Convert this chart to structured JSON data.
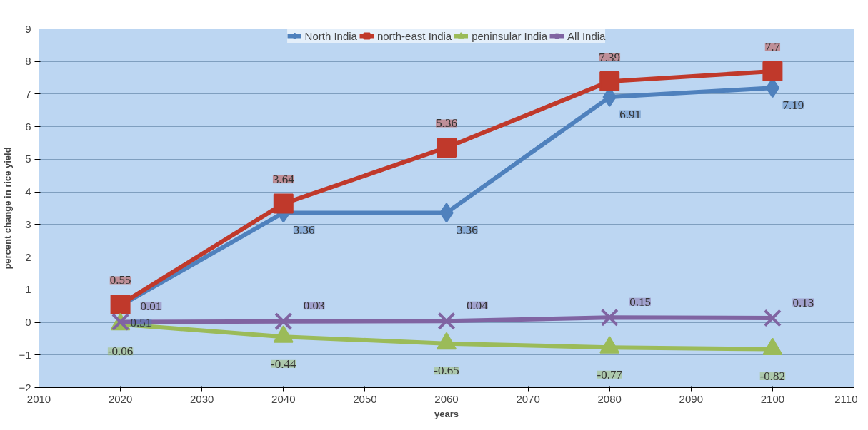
{
  "chart_data": {
    "type": "line",
    "xlabel": "years",
    "ylabel": "percent change in rice yield",
    "x": [
      2020,
      2040,
      2060,
      2080,
      2100
    ],
    "series": [
      {
        "name": "North India",
        "color": "#4f81bd",
        "marker": "diamond",
        "values": [
          0.51,
          3.36,
          3.36,
          6.91,
          7.19
        ]
      },
      {
        "name": "north-east India",
        "color": "#c0392b",
        "marker": "square",
        "values": [
          0.55,
          3.64,
          5.36,
          7.39,
          7.7
        ]
      },
      {
        "name": "peninsular India",
        "color": "#9bbb59",
        "marker": "triangle",
        "values": [
          -0.06,
          -0.44,
          -0.65,
          -0.77,
          -0.82
        ]
      },
      {
        "name": "All India",
        "color": "#8064a2",
        "marker": "cross",
        "values": [
          0.01,
          0.03,
          0.04,
          0.15,
          0.13
        ]
      }
    ],
    "xlim": [
      2010,
      2110
    ],
    "xticks": [
      2010,
      2020,
      2030,
      2040,
      2050,
      2060,
      2070,
      2080,
      2090,
      2100,
      2110
    ],
    "ylim": [
      -2,
      9
    ],
    "yticks": [
      -2,
      -1,
      0,
      1,
      2,
      3,
      4,
      5,
      6,
      7,
      8,
      9
    ],
    "grid": "y",
    "legend": "top",
    "data_labels": true
  }
}
